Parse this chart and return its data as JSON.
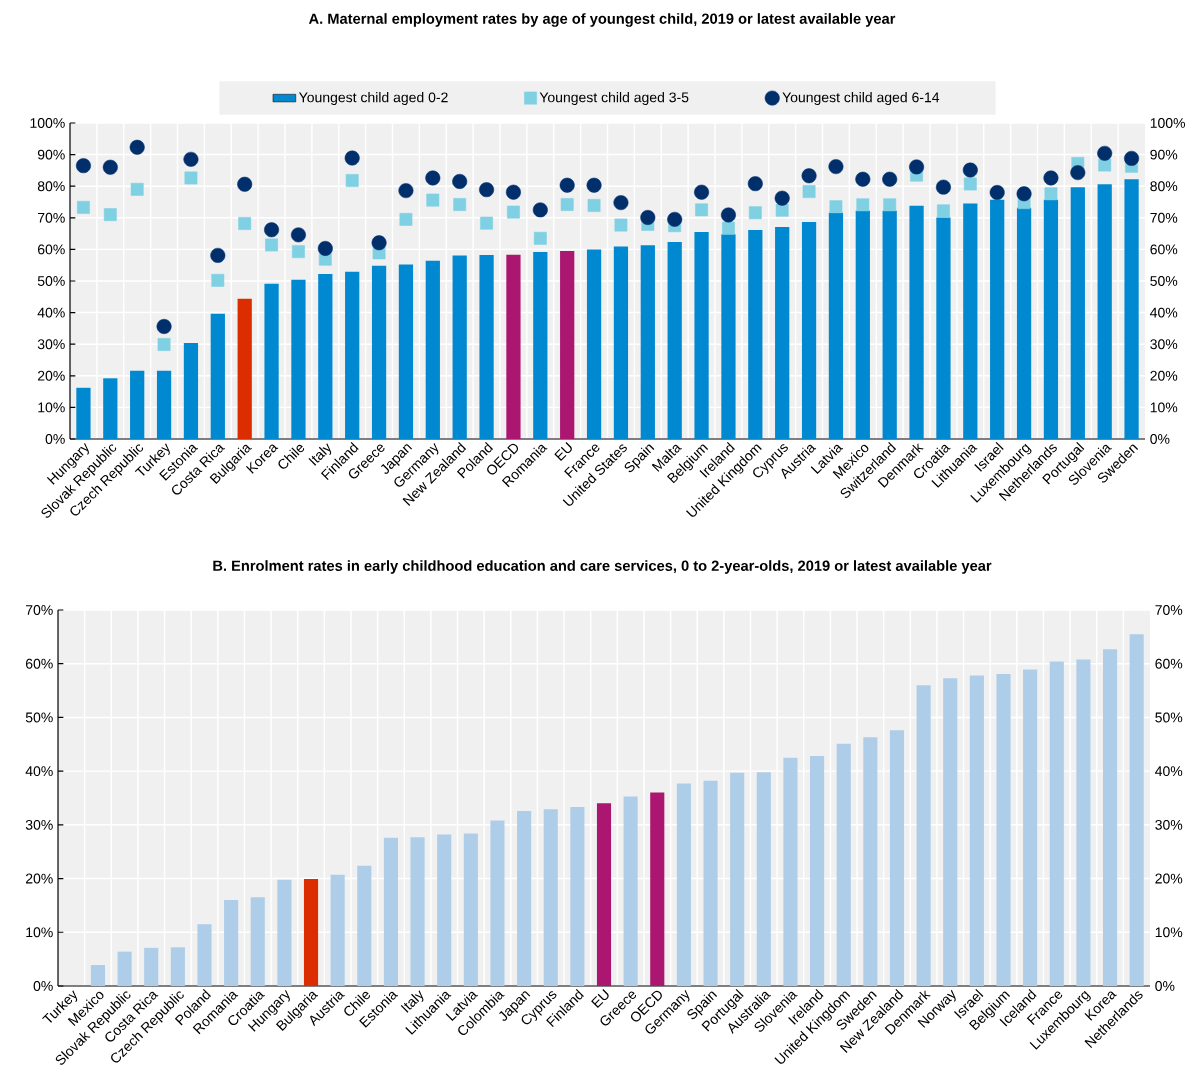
{
  "chart_data": [
    {
      "type": "bar",
      "title": "A. Maternal employment rates by age of youngest child, 2019 or latest available year",
      "categories": [
        "Hungary",
        "Slovak Republic",
        "Czech Republic",
        "Turkey",
        "Estonia",
        "Costa Rica",
        "Bulgaria",
        "Korea",
        "Chile",
        "Italy",
        "Finland",
        "Greece",
        "Japan",
        "Germany",
        "New Zealand",
        "Poland",
        "OECD",
        "Romania",
        "EU",
        "France",
        "United States",
        "Spain",
        "Malta",
        "Belgium",
        "Ireland",
        "United Kingdom",
        "Cyprus",
        "Austria",
        "Latvia",
        "Mexico",
        "Switzerland",
        "Denmark",
        "Croatia",
        "Lithuania",
        "Israel",
        "Luxembourg",
        "Netherlands",
        "Portugal",
        "Slovenia",
        "Sweden"
      ],
      "series": [
        {
          "name": "Youngest child aged 0-2",
          "type": "bar",
          "color": "#0088d1",
          "colors": [
            "#0088d1",
            "#0088d1",
            "#0088d1",
            "#0088d1",
            "#0088d1",
            "#0088d1",
            "#dc2d00",
            "#0088d1",
            "#0088d1",
            "#0088d1",
            "#0088d1",
            "#0088d1",
            "#0088d1",
            "#0088d1",
            "#0088d1",
            "#0088d1",
            "#ab1671",
            "#0088d1",
            "#ab1671",
            "#0088d1",
            "#0088d1",
            "#0088d1",
            "#0088d1",
            "#0088d1",
            "#0088d1",
            "#0088d1",
            "#0088d1",
            "#0088d1",
            "#0088d1",
            "#0088d1",
            "#0088d1",
            "#0088d1",
            "#0088d1",
            "#0088d1",
            "#0088d1",
            "#0088d1",
            "#0088d1",
            "#0088d1",
            "#0088d1",
            "#0088d1"
          ],
          "values": [
            16.2,
            19.2,
            21.6,
            21.6,
            30.4,
            39.6,
            44.4,
            49.1,
            50.4,
            52.2,
            52.9,
            54.8,
            55.2,
            56.4,
            58.1,
            58.2,
            58.3,
            59.2,
            59.5,
            60.0,
            60.9,
            61.3,
            62.3,
            65.5,
            64.8,
            66.1,
            67.1,
            68.7,
            71.6,
            72.2,
            72.2,
            73.8,
            70.1,
            74.5,
            75.7,
            73.2,
            75.7,
            79.7,
            80.6,
            82.2
          ]
        },
        {
          "name": "Youngest child aged 3-5",
          "type": "scatter",
          "marker": "square",
          "color": "#7fd0e3",
          "values": [
            73.3,
            71.0,
            79.0,
            29.9,
            82.6,
            50.2,
            68.2,
            61.4,
            59.3,
            56.9,
            81.8,
            58.9,
            69.5,
            75.6,
            74.2,
            68.3,
            71.8,
            63.5,
            74.2,
            73.9,
            67.7,
            67.9,
            67.5,
            72.5,
            66.7,
            71.6,
            72.4,
            78.3,
            73.5,
            74.1,
            74.1,
            83.5,
            72.2,
            80.7,
            null,
            74.8,
            77.6,
            87.2,
            86.7,
            86.3
          ]
        },
        {
          "name": "Youngest child aged 6-14",
          "type": "scatter",
          "marker": "circle",
          "color": "#002f6c",
          "values": [
            86.5,
            86.0,
            92.3,
            35.6,
            88.5,
            58.1,
            80.6,
            66.2,
            64.6,
            60.3,
            88.9,
            62.1,
            78.6,
            82.6,
            81.5,
            78.9,
            78.1,
            72.5,
            80.3,
            80.3,
            74.8,
            70.1,
            69.5,
            78.1,
            70.9,
            80.8,
            76.2,
            83.3,
            86.2,
            82.2,
            82.2,
            86.1,
            79.7,
            85.1,
            78.0,
            77.6,
            82.6,
            84.3,
            90.4,
            88.8
          ]
        }
      ],
      "ylim": [
        0,
        100
      ],
      "yticks": [
        {
          "value": 0,
          "label": "0%"
        },
        {
          "value": 10,
          "label": "10%"
        },
        {
          "value": 20,
          "label": "20%"
        },
        {
          "value": 30,
          "label": "30%"
        },
        {
          "value": 40,
          "label": "40%"
        },
        {
          "value": 50,
          "label": "50%"
        },
        {
          "value": 60,
          "label": "60%"
        },
        {
          "value": 70,
          "label": "70%"
        },
        {
          "value": 80,
          "label": "80%"
        },
        {
          "value": 90,
          "label": "90%"
        },
        {
          "value": 100,
          "label": "100%"
        }
      ],
      "y2lim": [
        0,
        100
      ],
      "y2ticks": [
        {
          "value": 0,
          "label": "0%"
        },
        {
          "value": 10,
          "label": "10%"
        },
        {
          "value": 20,
          "label": "20%"
        },
        {
          "value": 30,
          "label": "30%"
        },
        {
          "value": 40,
          "label": "40%"
        },
        {
          "value": 50,
          "label": "50%"
        },
        {
          "value": 60,
          "label": "60%"
        },
        {
          "value": 70,
          "label": "70%"
        },
        {
          "value": 80,
          "label": "80%"
        },
        {
          "value": 90,
          "label": "90%"
        },
        {
          "value": 100,
          "label": "100%"
        }
      ],
      "grid": true,
      "legend": "top"
    },
    {
      "type": "bar",
      "title": "B. Enrolment rates in early childhood education and care services, 0 to 2-year-olds, 2019 or latest available year",
      "categories": [
        "Turkey",
        "Mexico",
        "Slovak Republic",
        "Costa Rica",
        "Czech Republic",
        "Poland",
        "Romania",
        "Croatia",
        "Hungary",
        "Bulgaria",
        "Austria",
        "Chile",
        "Estonia",
        "Italy",
        "Lithuania",
        "Latvia",
        "Colombia",
        "Japan",
        "Cyprus",
        "Finland",
        "EU",
        "Greece",
        "OECD",
        "Germany",
        "Spain",
        "Portugal",
        "Australia",
        "Slovenia",
        "Ireland",
        "United Kingdom",
        "Sweden",
        "New Zealand",
        "Denmark",
        "Norway",
        "Israel",
        "Belgium",
        "Iceland",
        "France",
        "Luxembourg",
        "Korea",
        "Netherlands"
      ],
      "values": [
        null,
        3.9,
        6.4,
        7.1,
        7.2,
        11.5,
        16.0,
        16.5,
        19.8,
        19.9,
        20.7,
        22.4,
        27.6,
        27.7,
        28.2,
        28.4,
        30.8,
        32.6,
        32.9,
        33.3,
        34.0,
        35.3,
        36.0,
        37.7,
        38.2,
        39.7,
        39.8,
        42.5,
        42.8,
        45.1,
        46.3,
        47.6,
        56.0,
        57.3,
        57.8,
        58.1,
        58.9,
        60.4,
        60.8,
        62.7,
        65.5
      ],
      "colors": [
        "#aecde9",
        "#aecde9",
        "#aecde9",
        "#aecde9",
        "#aecde9",
        "#aecde9",
        "#aecde9",
        "#aecde9",
        "#aecde9",
        "#dc2d00",
        "#aecde9",
        "#aecde9",
        "#aecde9",
        "#aecde9",
        "#aecde9",
        "#aecde9",
        "#aecde9",
        "#aecde9",
        "#aecde9",
        "#aecde9",
        "#ab1671",
        "#aecde9",
        "#ab1671",
        "#aecde9",
        "#aecde9",
        "#aecde9",
        "#aecde9",
        "#aecde9",
        "#aecde9",
        "#aecde9",
        "#aecde9",
        "#aecde9",
        "#aecde9",
        "#aecde9",
        "#aecde9",
        "#aecde9",
        "#aecde9",
        "#aecde9",
        "#aecde9",
        "#aecde9",
        "#aecde9"
      ],
      "ylim": [
        0,
        70
      ],
      "yticks": [
        {
          "value": 0,
          "label": "0%"
        },
        {
          "value": 10,
          "label": "10%"
        },
        {
          "value": 20,
          "label": "20%"
        },
        {
          "value": 30,
          "label": "30%"
        },
        {
          "value": 40,
          "label": "40%"
        },
        {
          "value": 50,
          "label": "50%"
        },
        {
          "value": 60,
          "label": "60%"
        },
        {
          "value": 70,
          "label": "70%"
        }
      ],
      "y2lim": [
        0,
        70
      ],
      "y2ticks": [
        {
          "value": 0,
          "label": "0%"
        },
        {
          "value": 10,
          "label": "10%"
        },
        {
          "value": 20,
          "label": "20%"
        },
        {
          "value": 30,
          "label": "30%"
        },
        {
          "value": 40,
          "label": "40%"
        },
        {
          "value": 50,
          "label": "50%"
        },
        {
          "value": 60,
          "label": "60%"
        },
        {
          "value": 70,
          "label": "70%"
        }
      ],
      "grid": true
    }
  ]
}
